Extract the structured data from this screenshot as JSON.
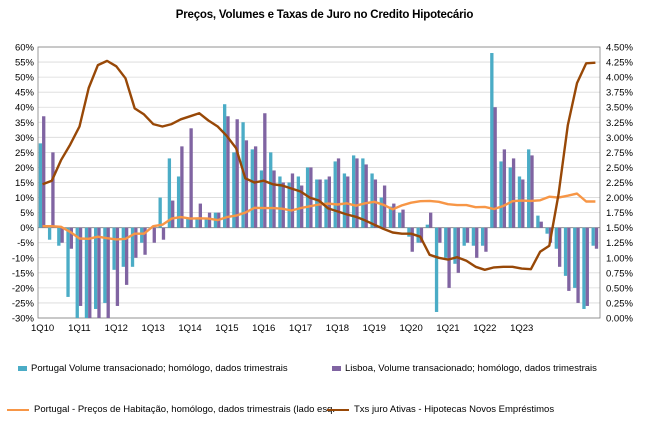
{
  "chart_data": {
    "type": "bar",
    "title": "Preços, Volumes e Taxas de Juro no Credito Hipotecário",
    "x_tick_labels": [
      "1Q10",
      "1Q11",
      "1Q12",
      "1Q13",
      "1Q14",
      "1Q15",
      "1Q16",
      "1Q17",
      "1Q18",
      "1Q19",
      "1Q20",
      "1Q21",
      "1Q22",
      "1Q23"
    ],
    "y_left": {
      "min": -30,
      "max": 60,
      "step": 5,
      "tick_labels": [
        "60%",
        "55%",
        "50%",
        "45%",
        "40%",
        "35%",
        "30%",
        "25%",
        "20%",
        "15%",
        "10%",
        "5%",
        "0%",
        "-5%",
        "-10%",
        "-15%",
        "-20%",
        "-25%",
        "-30%"
      ]
    },
    "y_right": {
      "min": 0,
      "max": 4.5,
      "step": 0.25,
      "tick_labels": [
        "4.50%",
        "4.25%",
        "4.00%",
        "3.75%",
        "3.50%",
        "3.25%",
        "3.00%",
        "2.75%",
        "2.50%",
        "2.25%",
        "2.00%",
        "1.75%",
        "1.50%",
        "1.25%",
        "1.00%",
        "0.75%",
        "0.50%",
        "0.25%",
        "0.00%"
      ]
    },
    "grid": true,
    "legend_position": "bottom",
    "colors": {
      "portugal_volume": "#4bacc6",
      "lisboa_volume": "#8064a2",
      "portugal_prices": "#f79646",
      "mortgage_rate": "#984807"
    },
    "series": [
      {
        "name": "Portugal Volume transacionado; homólogo, dados trimestrais",
        "kind": "bar",
        "axis": "left",
        "values": [
          28,
          -4,
          -6,
          -23,
          -30,
          -30,
          -27,
          -25,
          -14,
          -13,
          -13,
          -5,
          0,
          10,
          23,
          17,
          3,
          3,
          3,
          5,
          41,
          25,
          35,
          26,
          19,
          25,
          17,
          15,
          17,
          20,
          16,
          16,
          22,
          18,
          24,
          23,
          18,
          10,
          7,
          5,
          -3,
          -5,
          1,
          -28,
          -10,
          -12,
          -6,
          -6,
          -6,
          58,
          22,
          20,
          17,
          26,
          4,
          -2,
          -7,
          -16,
          -20,
          -27,
          -6
        ],
        "unit": "%"
      },
      {
        "name": "Lisboa, Volume transacionado; homólogo, dados trimestrais",
        "kind": "bar",
        "axis": "left",
        "values": [
          37,
          25,
          -5,
          -7,
          -26,
          -30,
          -30,
          -30,
          -26,
          -19,
          -10,
          -9,
          -5,
          -4,
          9,
          27,
          33,
          8,
          5,
          5,
          37,
          36,
          29,
          27,
          38,
          19,
          15,
          18,
          14,
          20,
          16,
          17,
          23,
          17,
          23,
          21,
          16,
          14,
          8,
          6,
          -8,
          -5,
          5,
          -5,
          -20,
          -15,
          -5,
          -10,
          -8,
          40,
          26,
          23,
          16,
          24,
          2,
          -5,
          -13,
          -21,
          -25,
          -26,
          -7
        ],
        "unit": "%"
      },
      {
        "name": "Portugal - Preços de Habitação, homólogo, dados trimestrais (lado esq.",
        "kind": "line",
        "axis": "left",
        "values": [
          0.5,
          0.5,
          0.3,
          -1.4,
          -3.6,
          -3.7,
          -3.0,
          -3.5,
          -3.9,
          -3.7,
          -2.0,
          -2.0,
          0.5,
          1.0,
          3.0,
          3.5,
          3.0,
          3.1,
          3.0,
          2.5,
          3.5,
          4.0,
          5.0,
          6.6,
          6.5,
          6.5,
          6.3,
          5.7,
          6.5,
          7.1,
          7.7,
          8.0,
          7.7,
          8.1,
          7.3,
          8.1,
          8.6,
          7.6,
          6.1,
          7.4,
          8.3,
          8.8,
          8.9,
          8.6,
          7.8,
          7.5,
          7.5,
          6.8,
          6.9,
          6.2,
          7.2,
          8.8,
          9.0,
          8.9,
          9.1,
          10.3,
          10.0,
          10.6,
          11.3,
          8.7,
          8.7
        ],
        "unit": "%"
      },
      {
        "name": "Txs juro Ativas - Hipotecas Novos Empréstimos",
        "kind": "line",
        "axis": "right",
        "values": [
          2.22,
          2.28,
          2.62,
          2.88,
          3.18,
          3.82,
          4.2,
          4.27,
          4.18,
          3.98,
          3.48,
          3.38,
          3.22,
          3.18,
          3.22,
          3.3,
          3.35,
          3.4,
          3.28,
          3.18,
          3.02,
          2.82,
          2.32,
          2.25,
          2.28,
          2.22,
          2.2,
          2.15,
          2.1,
          2.0,
          1.95,
          1.82,
          1.77,
          1.72,
          1.68,
          1.62,
          1.55,
          1.48,
          1.42,
          1.4,
          1.4,
          1.35,
          1.05,
          1.0,
          0.97,
          1.01,
          0.95,
          0.85,
          0.8,
          0.84,
          0.85,
          0.85,
          0.82,
          0.81,
          1.1,
          1.2,
          2.05,
          3.2,
          3.9,
          4.23,
          4.24
        ],
        "unit": "%"
      }
    ]
  }
}
